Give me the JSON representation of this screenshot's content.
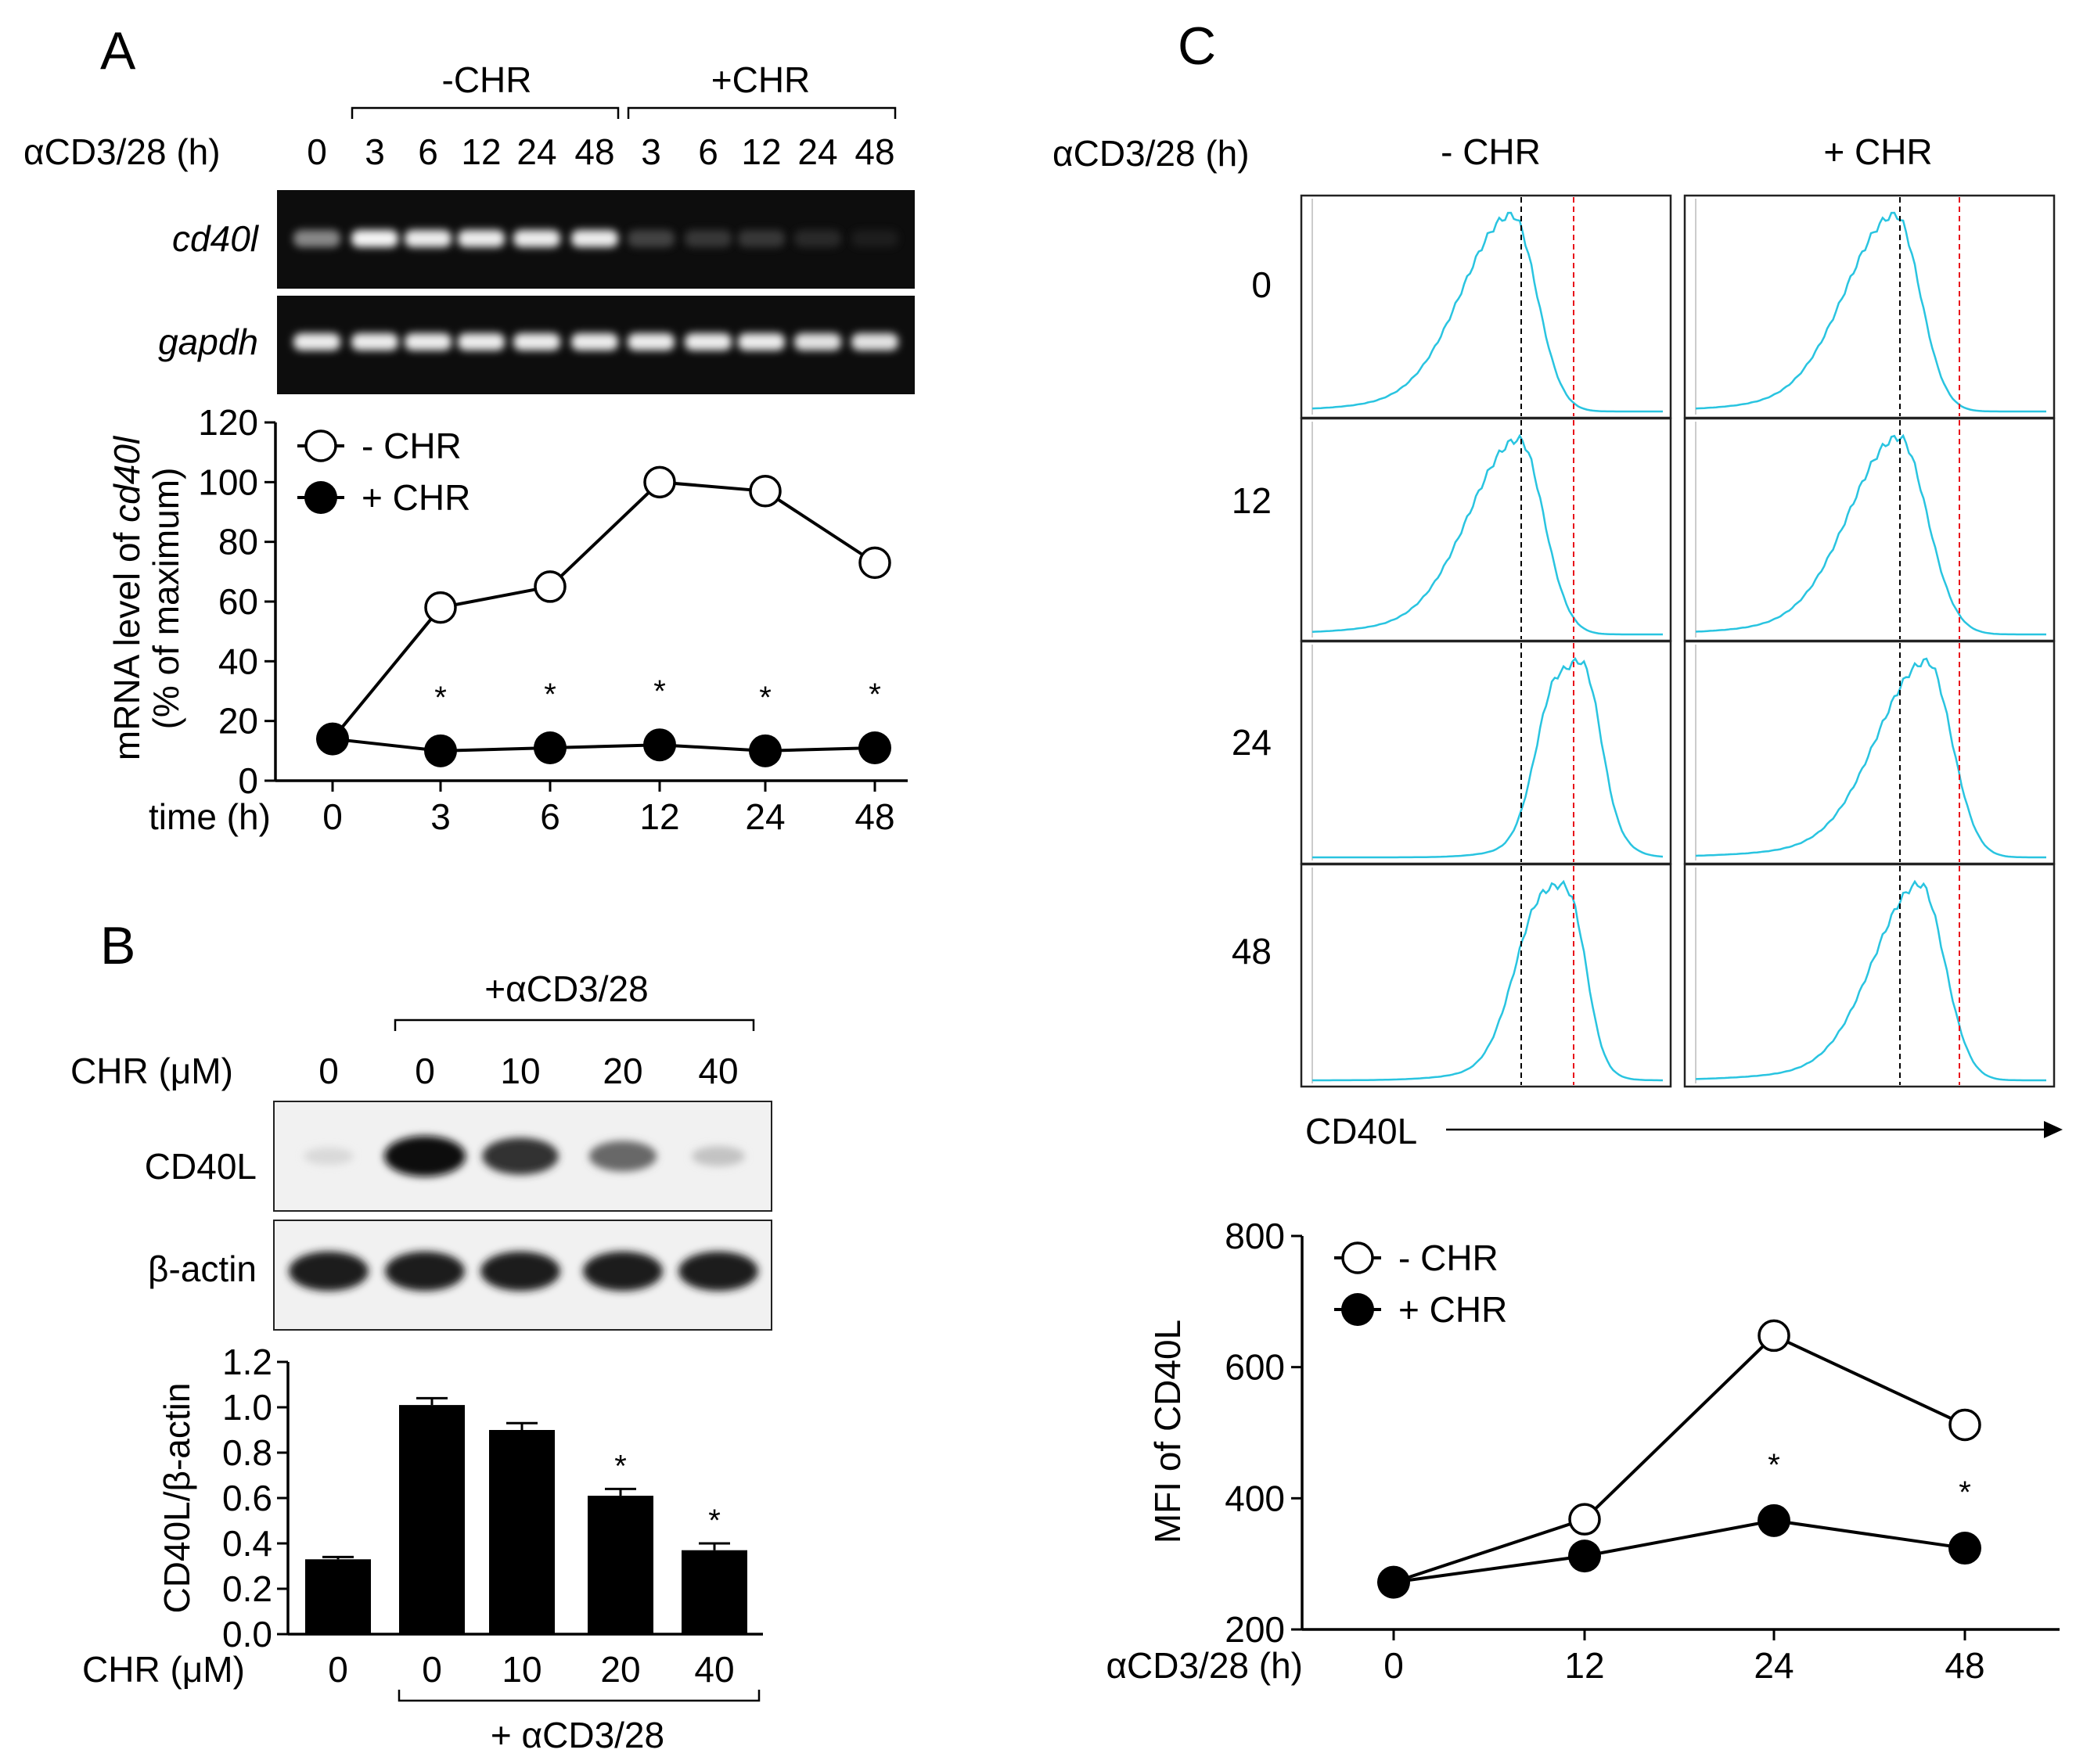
{
  "panels": {
    "A": {
      "letter": "A",
      "gel": {
        "treatment_label": "αCD3/28 (h)",
        "group_minus": "-CHR",
        "group_plus": "+CHR",
        "lanes": [
          "0",
          "3",
          "6",
          "12",
          "24",
          "48",
          "3",
          "6",
          "12",
          "24",
          "48"
        ],
        "rows": [
          "cd40l",
          "gapdh"
        ],
        "cd40l_intensity": [
          0.55,
          0.95,
          0.9,
          0.9,
          0.9,
          0.9,
          0.28,
          0.22,
          0.22,
          0.14,
          0.04
        ],
        "gapdh_intensity": [
          0.9,
          0.9,
          0.9,
          0.9,
          0.9,
          0.9,
          0.9,
          0.9,
          0.9,
          0.85,
          0.85
        ]
      }
    },
    "B": {
      "letter": "B",
      "blot": {
        "treatment_label": "+αCD3/28",
        "dose_label": "CHR (μM)",
        "lanes": [
          "0",
          "0",
          "10",
          "20",
          "40"
        ],
        "rows": [
          "CD40L",
          "β-actin"
        ],
        "cd40l_intensity": [
          0.08,
          1.0,
          0.85,
          0.6,
          0.18
        ],
        "actin_intensity": [
          0.95,
          0.95,
          0.95,
          0.95,
          0.95
        ]
      }
    },
    "C": {
      "letter": "C",
      "flow": {
        "treatment_label": "αCD3/28 (h)",
        "columns": [
          "- CHR",
          "+ CHR"
        ],
        "rows": [
          "0",
          "12",
          "24",
          "48"
        ],
        "x_label": "CD40L",
        "line_color": "#29c4e0",
        "ref_black": "#000000",
        "ref_red": "#e8101a"
      }
    }
  },
  "chart_data": [
    {
      "id": "A",
      "type": "line",
      "categories": [
        "0",
        "3",
        "6",
        "12",
        "24",
        "48"
      ],
      "series": [
        {
          "name": "- CHR",
          "marker": "open",
          "values": [
            14,
            58,
            65,
            100,
            97,
            73
          ]
        },
        {
          "name": "+ CHR",
          "marker": "filled",
          "values": [
            14,
            10,
            11,
            12,
            10,
            11
          ]
        }
      ],
      "significance": [
        "",
        "*",
        "*",
        "*",
        "*",
        "*"
      ],
      "xlabel": "time (h)",
      "ylabel": "mRNA level of cd40l",
      "ylabel2": "(% of maximum)",
      "ylim": [
        0,
        120
      ],
      "yticks": [
        "0",
        "20",
        "40",
        "60",
        "80",
        "100",
        "120"
      ]
    },
    {
      "id": "B",
      "type": "bar",
      "categories": [
        "0",
        "0",
        "10",
        "20",
        "40"
      ],
      "values": [
        0.33,
        1.01,
        0.9,
        0.61,
        0.37
      ],
      "errors": [
        0.01,
        0.03,
        0.03,
        0.03,
        0.03
      ],
      "significance": [
        "",
        "",
        "",
        "*",
        "*"
      ],
      "xlabel": "CHR (μM)",
      "ylabel": "CD40L/β-actin",
      "group_label": "+ αCD3/28",
      "ylim": [
        0,
        1.2
      ],
      "yticks": [
        "0.0",
        "0.2",
        "0.4",
        "0.6",
        "0.8",
        "1.0",
        "1.2"
      ]
    },
    {
      "id": "C",
      "type": "line",
      "categories": [
        "0",
        "12",
        "24",
        "48"
      ],
      "series": [
        {
          "name": "- CHR",
          "marker": "open",
          "values": [
            272,
            368,
            648,
            512
          ]
        },
        {
          "name": "+ CHR",
          "marker": "filled",
          "values": [
            272,
            312,
            366,
            324
          ]
        }
      ],
      "significance": [
        "",
        "",
        "*",
        "*"
      ],
      "xlabel": "αCD3/28 (h)",
      "ylabel": "MFI of CD40L",
      "ylim": [
        200,
        800
      ],
      "yticks": [
        "200",
        "400",
        "600",
        "800"
      ]
    }
  ]
}
